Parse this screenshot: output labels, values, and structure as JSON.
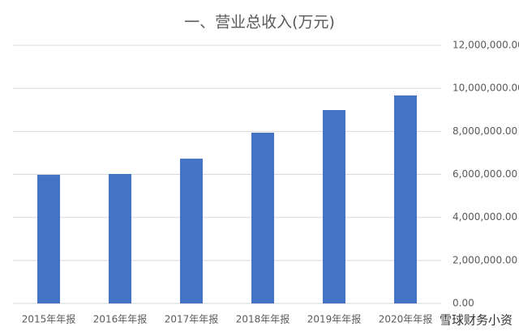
{
  "chart_data": {
    "type": "bar",
    "title": "一、营业总收入(万元)",
    "categories": [
      "2015年年报",
      "2016年年报",
      "2017年年报",
      "2018年年报",
      "2019年年报",
      "2020年年报"
    ],
    "values": [
      5980000,
      6020000,
      6730000,
      7940000,
      8990000,
      9670000
    ],
    "color": "#4472c4",
    "ylim": [
      0,
      12000000
    ],
    "yticks": [
      {
        "value": 0,
        "label": "0.00"
      },
      {
        "value": 2000000,
        "label": "2,000,000.00"
      },
      {
        "value": 4000000,
        "label": "4,000,000.00"
      },
      {
        "value": 6000000,
        "label": "6,000,000.00"
      },
      {
        "value": 8000000,
        "label": "8,000,000.00"
      },
      {
        "value": 10000000,
        "label": "10,000,000.00"
      },
      {
        "value": 12000000,
        "label": "12,000,000.00"
      }
    ],
    "grid": true
  },
  "watermark": "雪球财务小资"
}
